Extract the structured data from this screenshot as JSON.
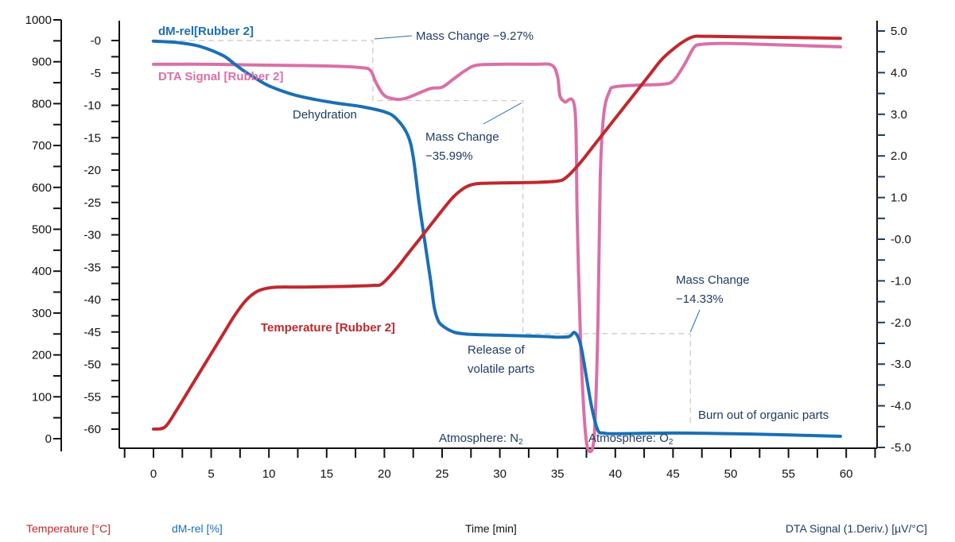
{
  "chart_data": {
    "type": "line",
    "title": "",
    "xlabel": "Time [min]",
    "xlim": [
      -2.5,
      62.5
    ],
    "x_ticks": [
      0,
      5,
      10,
      15,
      20,
      25,
      30,
      35,
      40,
      45,
      50,
      55,
      60
    ],
    "x_minor_step": 2.5,
    "axes": [
      {
        "id": "temp",
        "label": "Temperature [°C]",
        "position": "left-outer",
        "ylim": [
          0,
          1000
        ],
        "ticks": [
          0,
          100,
          200,
          300,
          400,
          500,
          600,
          700,
          800,
          900,
          1000
        ],
        "tick_labels": [
          "0",
          "100",
          "200",
          "300",
          "400",
          "500",
          "600",
          "700",
          "800",
          "900",
          "1000"
        ],
        "color": "#c0282d"
      },
      {
        "id": "mass",
        "label": "dM-rel [%]",
        "position": "left-inner",
        "ylim": [
          -60,
          0
        ],
        "ticks": [
          0,
          -5,
          -10,
          -15,
          -20,
          -25,
          -30,
          -35,
          -40,
          -45,
          -50,
          -55,
          -60
        ],
        "tick_labels": [
          "-0",
          "-5",
          "-10",
          "-15",
          "-20",
          "-25",
          "-30",
          "-35",
          "-40",
          "-45",
          "-50",
          "-55",
          "-60"
        ],
        "color": "#1a6fb5"
      },
      {
        "id": "dta",
        "label": "DTA Signal (1.Deriv.) [µV/°C]",
        "position": "right",
        "ylim": [
          -5,
          5
        ],
        "ticks": [
          5,
          4,
          3,
          2,
          1,
          0,
          -1,
          -2,
          -3,
          -4,
          -5
        ],
        "tick_labels": [
          "5.0",
          "4.0",
          "3.0",
          "2.0",
          "1.0",
          "-0.0",
          "-1.0",
          "-2.0",
          "-3.0",
          "-4.0",
          "-5.0"
        ],
        "color": "#1f3b63"
      }
    ],
    "series": [
      {
        "name": "Temperature [Rubber 2]",
        "axis": "temp",
        "color": "#c0282d",
        "x": [
          0,
          1,
          2,
          3,
          4,
          5,
          6,
          7,
          8,
          9,
          10,
          11,
          13,
          15,
          17,
          19,
          19.8,
          21,
          22,
          23,
          24,
          25,
          26,
          27,
          27.8,
          29,
          31,
          33,
          35,
          35.8,
          37,
          38,
          39,
          40,
          41,
          42,
          43,
          44,
          45,
          46,
          46.8,
          47.5,
          50,
          55,
          59.5
        ],
        "values": [
          23,
          28,
          68,
          113,
          158,
          203,
          248,
          293,
          330,
          352,
          360,
          362,
          362,
          363,
          364,
          366,
          370,
          405,
          440,
          475,
          510,
          545,
          578,
          600,
          608,
          610,
          611,
          612,
          615,
          625,
          660,
          695,
          730,
          765,
          800,
          835,
          870,
          905,
          930,
          950,
          960,
          961,
          960,
          958,
          956
        ]
      },
      {
        "name": "dM-rel[Rubber 2]",
        "axis": "mass",
        "color": "#1a6fb5",
        "x": [
          0,
          2,
          4,
          6,
          7,
          8,
          9,
          10,
          12,
          14,
          16,
          18,
          20,
          21,
          22,
          22.5,
          23,
          23.5,
          24,
          24.3,
          24.6,
          25,
          26,
          27,
          28,
          30,
          32,
          34,
          35,
          36,
          36.5,
          37,
          37.5,
          38,
          38.5,
          39,
          40,
          45,
          50,
          55,
          59.5
        ],
        "values": [
          -0.1,
          -0.3,
          -0.9,
          -2.3,
          -3.6,
          -4.9,
          -6.0,
          -7.0,
          -8.3,
          -9.1,
          -9.7,
          -10.2,
          -11.0,
          -12.0,
          -14.5,
          -18,
          -25,
          -31,
          -37,
          -41,
          -43,
          -44,
          -45.0,
          -45.3,
          -45.4,
          -45.5,
          -45.6,
          -45.7,
          -45.8,
          -45.7,
          -45.1,
          -47,
          -52,
          -57,
          -60.2,
          -60.6,
          -60.7,
          -60.6,
          -60.7,
          -60.9,
          -61.1
        ]
      },
      {
        "name": "DTA Signal [Rubber 2]",
        "axis": "dta",
        "color": "#d970a8",
        "x": [
          0,
          5,
          10,
          15,
          18,
          18.8,
          19.3,
          20,
          21,
          21.8,
          22.5,
          24,
          25,
          26,
          27,
          28,
          30,
          33,
          34.5,
          35,
          35.2,
          35.6,
          36.5,
          36.7,
          37,
          37.4,
          37.8,
          38.2,
          38.5,
          38.7,
          39,
          39.5,
          40,
          42,
          44,
          45,
          46,
          46.8,
          47.5,
          50,
          55,
          59.5
        ],
        "values": [
          4.2,
          4.2,
          4.18,
          4.16,
          4.12,
          4.05,
          3.75,
          3.45,
          3.36,
          3.38,
          3.45,
          3.62,
          3.65,
          3.85,
          4.05,
          4.18,
          4.2,
          4.2,
          4.18,
          3.9,
          3.45,
          3.3,
          3.12,
          0.5,
          -2.5,
          -4.6,
          -5.1,
          -4.6,
          -2.0,
          1.5,
          3.0,
          3.55,
          3.66,
          3.7,
          3.72,
          3.8,
          4.2,
          4.6,
          4.68,
          4.7,
          4.66,
          4.62
        ]
      }
    ],
    "series_labels": [
      {
        "text": "dM-rel[Rubber 2]",
        "color": "#1a6fb5"
      },
      {
        "text": "DTA Signal [Rubber 2]",
        "color": "#d970a8"
      },
      {
        "text": "Temperature [Rubber 2]",
        "color": "#c0282d"
      }
    ],
    "annotations": [
      {
        "text": "Mass Change −9.27%",
        "lines": [
          "Mass Change −9.27%"
        ]
      },
      {
        "text": "Mass Change −35.99%",
        "lines": [
          "Mass Change",
          "−35.99%"
        ]
      },
      {
        "text": "Mass Change −14.33%",
        "lines": [
          "Mass Change",
          "−14.33%"
        ]
      },
      {
        "text": "Dehydration",
        "lines": [
          "Dehydration"
        ]
      },
      {
        "text": "Release of volatile parts",
        "lines": [
          "Release of",
          "volatile parts"
        ]
      },
      {
        "text": "Burn out of organic parts",
        "lines": [
          "Burn out of organic parts"
        ]
      },
      {
        "text": "Atmosphere: N2",
        "main": "Atmosphere: N",
        "sub": "2"
      },
      {
        "text": "Atmosphere: O2",
        "main": "Atmosphere: O",
        "sub": "2"
      }
    ],
    "mass_change_steps": [
      {
        "from_min": 0,
        "to_min": 19,
        "change_percent": -9.27
      },
      {
        "from_min": 19,
        "to_min": 32,
        "change_percent": -35.99
      },
      {
        "from_min": 32,
        "to_min": 46.5,
        "change_percent": -14.33
      }
    ],
    "axis_titles": {
      "temp": "Temperature [°C]",
      "mass": "dM-rel [%]",
      "time": "Time [min]",
      "dta": "DTA Signal (1.Deriv.) [µV/°C]"
    },
    "grid": false,
    "legend": "inline-labels"
  }
}
